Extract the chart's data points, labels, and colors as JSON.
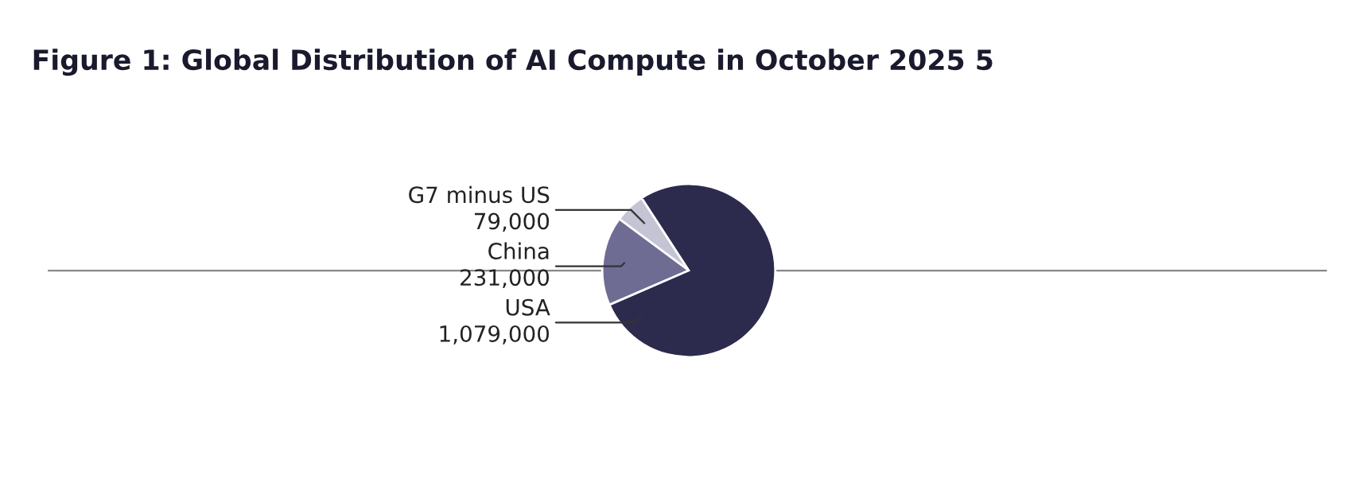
{
  "chart_data": {
    "type": "pie",
    "title": "Figure 1: Global Distribution of AI Compute in October 2025 5",
    "categories": [
      "G7 minus US",
      "China",
      "USA"
    ],
    "values": [
      79000,
      231000,
      1079000
    ],
    "value_labels": [
      "79,000",
      "231,000",
      "1,079,000"
    ],
    "colors": [
      "#c5c4d4",
      "#6f6c94",
      "#2c2b4e"
    ]
  }
}
